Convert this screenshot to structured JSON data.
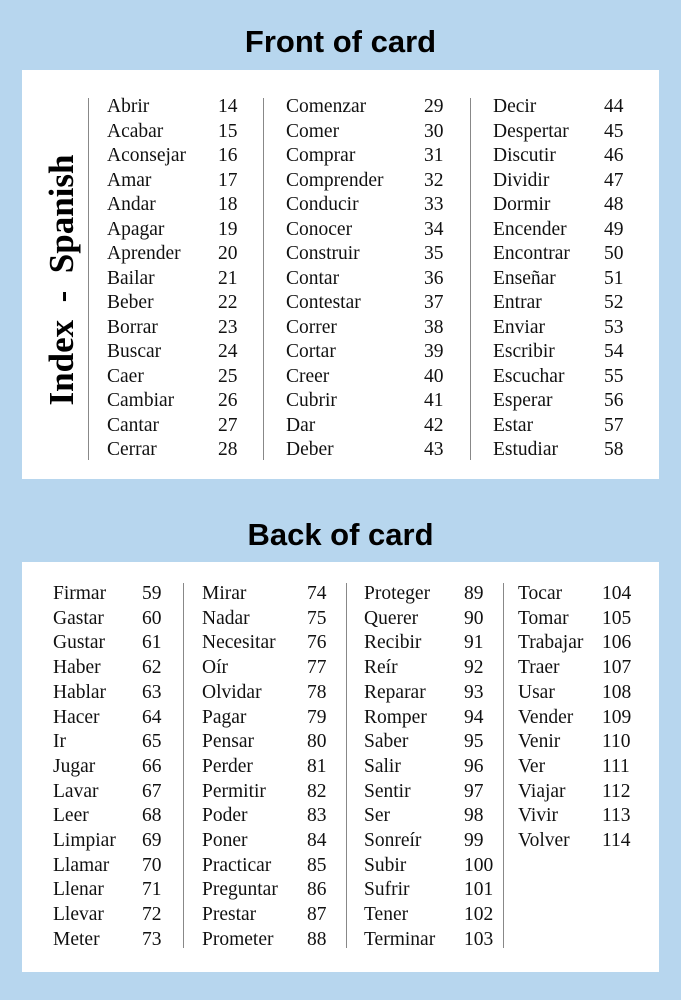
{
  "front": {
    "title": "Front of card",
    "side_label": "Index  -  Spanish",
    "columns": [
      [
        [
          "Abrir",
          14
        ],
        [
          "Acabar",
          15
        ],
        [
          "Aconsejar",
          16
        ],
        [
          "Amar",
          17
        ],
        [
          "Andar",
          18
        ],
        [
          "Apagar",
          19
        ],
        [
          "Aprender",
          20
        ],
        [
          "Bailar",
          21
        ],
        [
          "Beber",
          22
        ],
        [
          "Borrar",
          23
        ],
        [
          "Buscar",
          24
        ],
        [
          "Caer",
          25
        ],
        [
          "Cambiar",
          26
        ],
        [
          "Cantar",
          27
        ],
        [
          "Cerrar",
          28
        ]
      ],
      [
        [
          "Comenzar",
          29
        ],
        [
          "Comer",
          30
        ],
        [
          "Comprar",
          31
        ],
        [
          "Comprender",
          32
        ],
        [
          "Conducir",
          33
        ],
        [
          "Conocer",
          34
        ],
        [
          "Construir",
          35
        ],
        [
          "Contar",
          36
        ],
        [
          "Contestar",
          37
        ],
        [
          "Correr",
          38
        ],
        [
          "Cortar",
          39
        ],
        [
          "Creer",
          40
        ],
        [
          "Cubrir",
          41
        ],
        [
          "Dar",
          42
        ],
        [
          "Deber",
          43
        ]
      ],
      [
        [
          "Decir",
          44
        ],
        [
          "Despertar",
          45
        ],
        [
          "Discutir",
          46
        ],
        [
          "Dividir",
          47
        ],
        [
          "Dormir",
          48
        ],
        [
          "Encender",
          49
        ],
        [
          "Encontrar",
          50
        ],
        [
          "Enseñar",
          51
        ],
        [
          "Entrar",
          52
        ],
        [
          "Enviar",
          53
        ],
        [
          "Escribir",
          54
        ],
        [
          "Escuchar",
          55
        ],
        [
          "Esperar",
          56
        ],
        [
          "Estar",
          57
        ],
        [
          "Estudiar",
          58
        ]
      ]
    ]
  },
  "back": {
    "title": "Back of card",
    "columns": [
      [
        [
          "Firmar",
          59
        ],
        [
          "Gastar",
          60
        ],
        [
          "Gustar",
          61
        ],
        [
          "Haber",
          62
        ],
        [
          "Hablar",
          63
        ],
        [
          "Hacer",
          64
        ],
        [
          "Ir",
          65
        ],
        [
          "Jugar",
          66
        ],
        [
          "Lavar",
          67
        ],
        [
          "Leer",
          68
        ],
        [
          "Limpiar",
          69
        ],
        [
          "Llamar",
          70
        ],
        [
          "Llenar",
          71
        ],
        [
          "Llevar",
          72
        ],
        [
          "Meter",
          73
        ]
      ],
      [
        [
          "Mirar",
          74
        ],
        [
          "Nadar",
          75
        ],
        [
          "Necesitar",
          76
        ],
        [
          "Oír",
          77
        ],
        [
          "Olvidar",
          78
        ],
        [
          "Pagar",
          79
        ],
        [
          "Pensar",
          80
        ],
        [
          "Perder",
          81
        ],
        [
          "Permitir",
          82
        ],
        [
          "Poder",
          83
        ],
        [
          "Poner",
          84
        ],
        [
          "Practicar",
          85
        ],
        [
          "Preguntar",
          86
        ],
        [
          "Prestar",
          87
        ],
        [
          "Prometer",
          88
        ]
      ],
      [
        [
          "Proteger",
          89
        ],
        [
          "Querer",
          90
        ],
        [
          "Recibir",
          91
        ],
        [
          "Reír",
          92
        ],
        [
          "Reparar",
          93
        ],
        [
          "Romper",
          94
        ],
        [
          "Saber",
          95
        ],
        [
          "Salir",
          96
        ],
        [
          "Sentir",
          97
        ],
        [
          "Ser",
          98
        ],
        [
          "Sonreír",
          99
        ],
        [
          "Subir",
          100
        ],
        [
          "Sufrir",
          101
        ],
        [
          "Tener",
          102
        ],
        [
          "Terminar",
          103
        ]
      ],
      [
        [
          "Tocar",
          104
        ],
        [
          "Tomar",
          105
        ],
        [
          "Trabajar",
          106
        ],
        [
          "Traer",
          107
        ],
        [
          "Usar",
          108
        ],
        [
          "Vender",
          109
        ],
        [
          "Venir",
          110
        ],
        [
          "Ver",
          111
        ],
        [
          "Viajar",
          112
        ],
        [
          "Vivir",
          113
        ],
        [
          "Volver",
          114
        ]
      ]
    ]
  }
}
